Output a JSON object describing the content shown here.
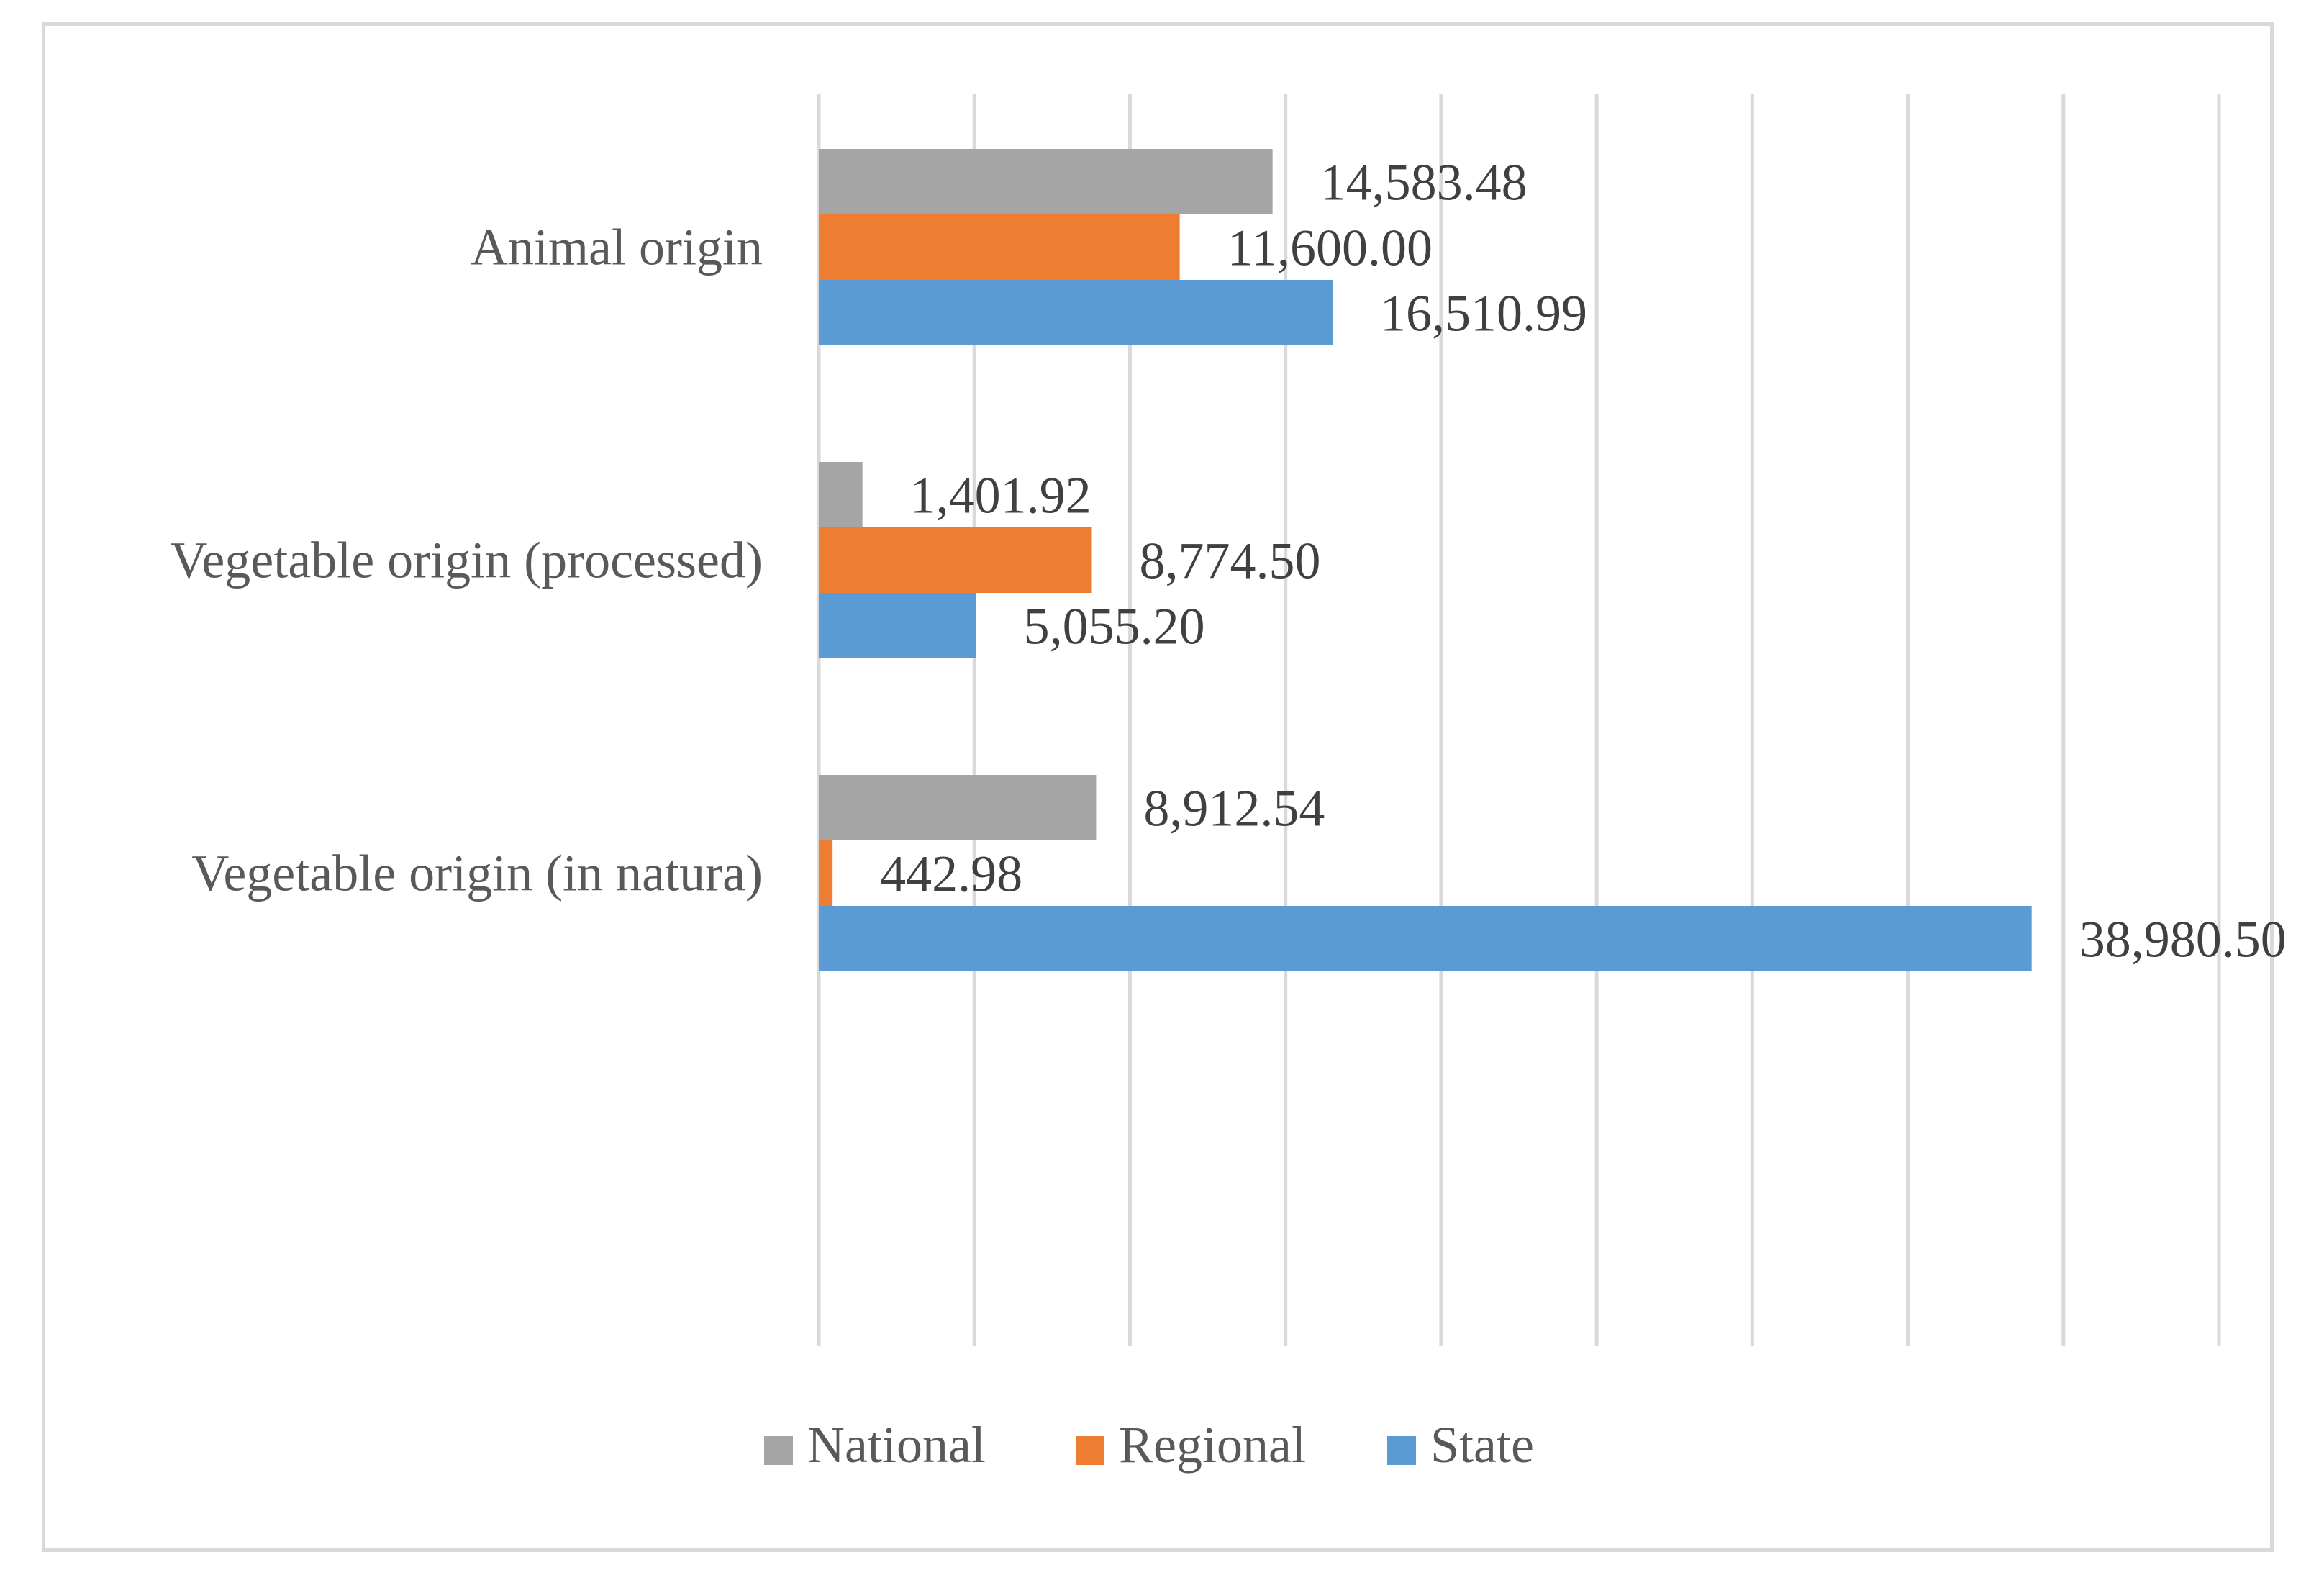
{
  "chart_data": {
    "type": "bar",
    "orientation": "horizontal",
    "title": "",
    "xlabel": "",
    "ylabel": "",
    "xlim": [
      0,
      45000
    ],
    "x_tick_step": 5000,
    "grid": true,
    "legend_position": "bottom",
    "categories": [
      "Animal origin",
      "Vegetable origin (processed)",
      "Vegetable origin (in natura)"
    ],
    "series": [
      {
        "name": "National",
        "color": "#a5a5a5",
        "values": [
          14583.48,
          1401.92,
          8912.54
        ],
        "labels": [
          "14,583.48",
          "1,401.92",
          "8,912.54"
        ]
      },
      {
        "name": "Regional",
        "color": "#ed7d31",
        "values": [
          11600.0,
          8774.5,
          442.98
        ],
        "labels": [
          "11,600.00",
          "8,774.50",
          "442.98"
        ]
      },
      {
        "name": "State",
        "color": "#5b9bd5",
        "values": [
          16510.99,
          5055.2,
          38980.5
        ],
        "labels": [
          "16,510.99",
          "5,055.20",
          "38,980.50"
        ]
      }
    ]
  }
}
